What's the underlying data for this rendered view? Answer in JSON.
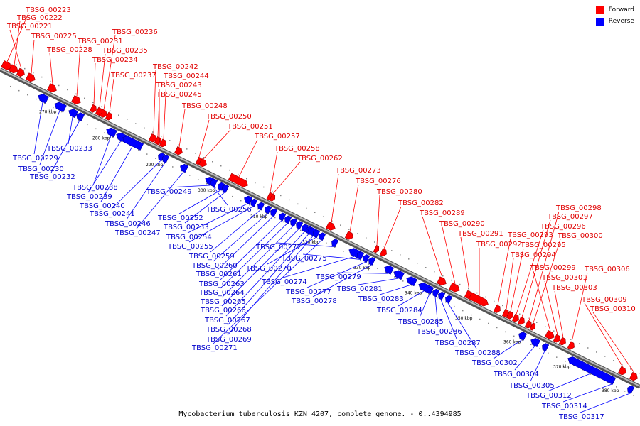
{
  "colors": {
    "forward": "#ff0000",
    "reverse": "#0000ff",
    "forward_label": "#e00000",
    "reverse_label": "#0000cc",
    "backbone": "#888888"
  },
  "legend": [
    {
      "label": "Forward",
      "color": "#ff0000"
    },
    {
      "label": "Reverse",
      "color": "#0000ff"
    }
  ],
  "caption": "Mycobacterium tuberculosis KZN 4207, complete genome. - 0..4394985",
  "ticks": [
    "270 kbp",
    "280 kbp",
    "290 kbp",
    "300 kbp",
    "310 kbp",
    "320 kbp",
    "330 kbp",
    "340 kbp",
    "350 kbp",
    "360 kbp",
    "370 kbp",
    "380 kbp"
  ],
  "forward_genes": [
    "TBSG_00223",
    "TBSG_00222",
    "TBSG_00221",
    "TBSG_00225",
    "TBSG_00228",
    "TBSG_00231",
    "TBSG_00236",
    "TBSG_00235",
    "TBSG_00234",
    "TBSG_00237",
    "TBSG_00242",
    "TBSG_00244",
    "TBSG_00243",
    "TBSG_00245",
    "TBSG_00248",
    "TBSG_00250",
    "TBSG_00251",
    "TBSG_00257",
    "TBSG_00258",
    "TBSG_00262",
    "TBSG_00273",
    "TBSG_00276",
    "TBSG_00280",
    "TBSG_00282",
    "TBSG_00289",
    "TBSG_00290",
    "TBSG_00291",
    "TBSG_00292",
    "TBSG_00293",
    "TBSG_00294",
    "TBSG_00295",
    "TBSG_00296",
    "TBSG_00297",
    "TBSG_00298",
    "TBSG_00300",
    "TBSG_00299",
    "TBSG_00301",
    "TBSG_00303",
    "TBSG_00306",
    "TBSG_00309",
    "TBSG_00310"
  ],
  "reverse_genes": [
    "TBSG_00229",
    "TBSG_00230",
    "TBSG_00232",
    "TBSG_00233",
    "TBSG_00238",
    "TBSG_00239",
    "TBSG_00240",
    "TBSG_00241",
    "TBSG_00246",
    "TBSG_00247",
    "TBSG_00249",
    "TBSG_00252",
    "TBSG_00253",
    "TBSG_00254",
    "TBSG_00255",
    "TBSG_00256",
    "TBSG_00259",
    "TBSG_00260",
    "TBSG_00261",
    "TBSG_00263",
    "TBSG_00264",
    "TBSG_00265",
    "TBSG_00266",
    "TBSG_00267",
    "TBSG_00268",
    "TBSG_00269",
    "TBSG_00271",
    "TBSG_00270",
    "TBSG_00272",
    "TBSG_00274",
    "TBSG_00275",
    "TBSG_00277",
    "TBSG_00278",
    "TBSG_00279",
    "TBSG_00281",
    "TBSG_00283",
    "TBSG_00284",
    "TBSG_00285",
    "TBSG_00286",
    "TBSG_00287",
    "TBSG_00288",
    "TBSG_00302",
    "TBSG_00304",
    "TBSG_00305",
    "TBSG_00312",
    "TBSG_00314",
    "TBSG_00317"
  ]
}
